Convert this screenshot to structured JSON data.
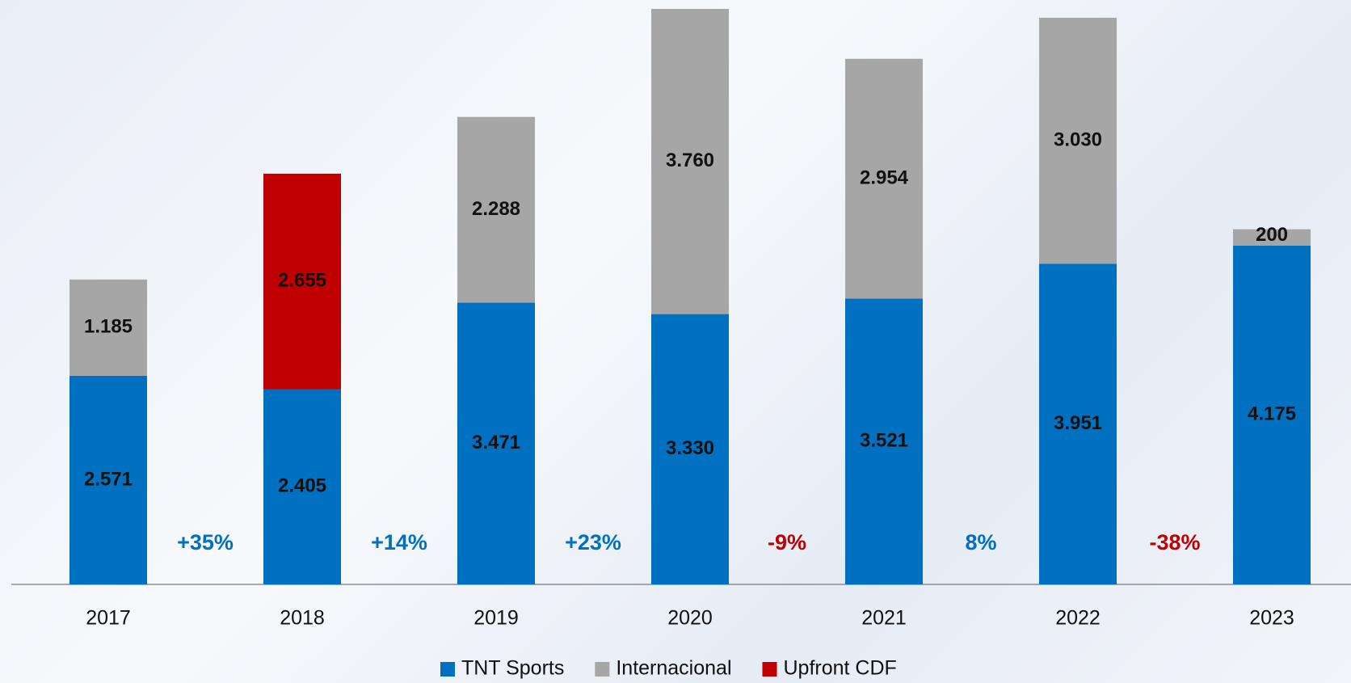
{
  "chart_data": {
    "type": "stacked-bar",
    "categories": [
      "2017",
      "2018",
      "2019",
      "2020",
      "2021",
      "2022",
      "2023"
    ],
    "series": [
      {
        "name": "TNT Sports",
        "color": "#0070c0",
        "values": [
          2571,
          2405,
          3471,
          3330,
          3521,
          3951,
          4175
        ],
        "value_labels": [
          "2.571",
          "2.405",
          "3.471",
          "3.330",
          "3.521",
          "3.951",
          "4.175"
        ]
      },
      {
        "name": "Internacional",
        "color": "#a6a6a6",
        "values": [
          1185,
          null,
          2288,
          3760,
          2954,
          3030,
          200
        ],
        "value_labels": [
          "1.185",
          null,
          "2.288",
          "3.760",
          "2.954",
          "3.030",
          "200"
        ]
      },
      {
        "name": "Upfront CDF",
        "color": "#c00000",
        "values": [
          null,
          2655,
          null,
          null,
          null,
          null,
          null
        ],
        "value_labels": [
          null,
          "2.655",
          null,
          null,
          null,
          null,
          null
        ]
      }
    ],
    "ylim": [
      0,
      7100
    ],
    "annotations": [
      {
        "text": "+35%",
        "color": "#0070c0"
      },
      {
        "text": "+14%",
        "color": "#0070c0"
      },
      {
        "text": "+23%",
        "color": "#0070c0"
      },
      {
        "text": "-9%",
        "color": "#c00000"
      },
      {
        "text": "8%",
        "color": "#0070c0"
      },
      {
        "text": "-38%",
        "color": "#c00000"
      }
    ],
    "legend": "bottom"
  }
}
